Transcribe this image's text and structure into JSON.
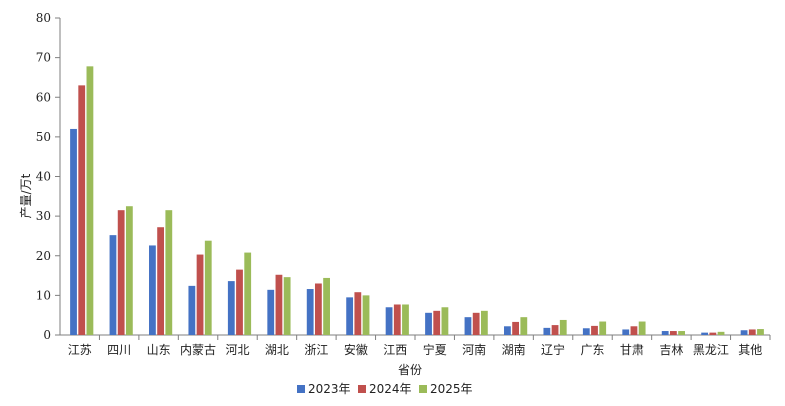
{
  "chart_data": {
    "type": "bar",
    "xlabel": "省份",
    "ylabel": "产量/万t",
    "ylim": [
      0,
      80
    ],
    "yticks": [
      0,
      10,
      20,
      30,
      40,
      50,
      60,
      70,
      80
    ],
    "grid": false,
    "legend_position": "bottom",
    "categories": [
      "江苏",
      "四川",
      "山东",
      "内蒙古",
      "河北",
      "湖北",
      "浙江",
      "安徽",
      "江西",
      "宁夏",
      "河南",
      "湖南",
      "辽宁",
      "广东",
      "甘肃",
      "吉林",
      "黑龙江",
      "其他"
    ],
    "series": [
      {
        "name": "2023年",
        "color": "#4472c4",
        "values": [
          52,
          25.2,
          22.6,
          12.4,
          13.6,
          11.4,
          11.6,
          9.5,
          7,
          5.6,
          4.5,
          2.2,
          1.8,
          1.7,
          1.4,
          1,
          0.6,
          1.2
        ]
      },
      {
        "name": "2024年",
        "color": "#c0504d",
        "values": [
          63,
          31.5,
          27.2,
          20.3,
          16.5,
          15.2,
          13,
          10.8,
          7.7,
          6.1,
          5.6,
          3.3,
          2.5,
          2.3,
          2.2,
          1,
          0.6,
          1.4
        ]
      },
      {
        "name": "2025年",
        "color": "#9bbb59",
        "values": [
          67.8,
          32.5,
          31.5,
          23.8,
          20.8,
          14.6,
          14.4,
          10,
          7.7,
          7,
          6.1,
          4.5,
          3.8,
          3.4,
          3.4,
          1,
          0.8,
          1.5
        ]
      }
    ]
  }
}
